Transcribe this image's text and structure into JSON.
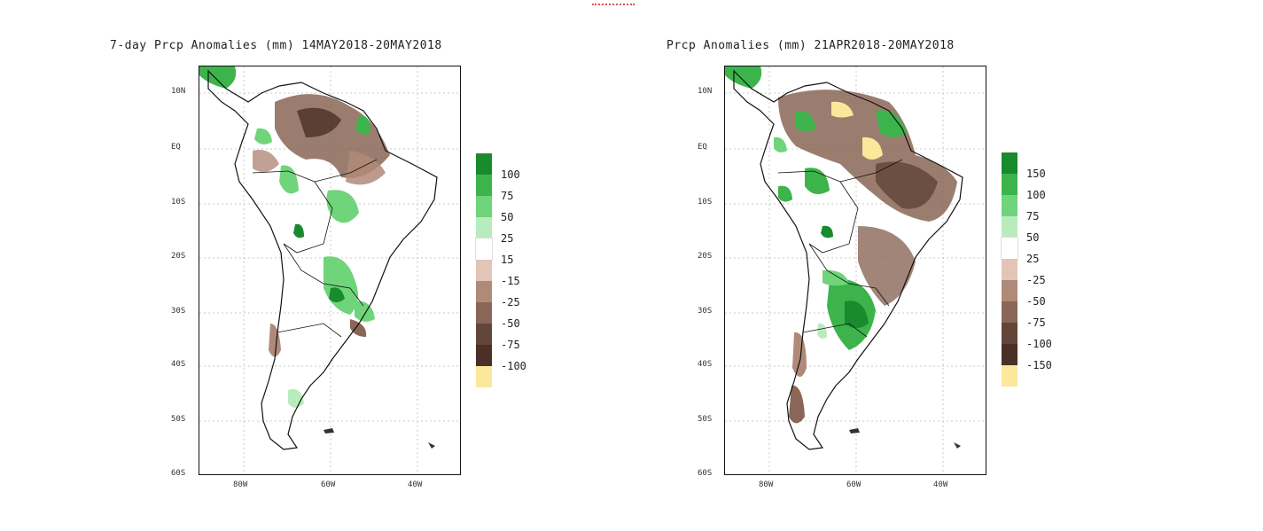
{
  "header_mark": "",
  "panels": [
    {
      "id": "left",
      "title": "7-day Prcp Anomalies (mm) 14MAY2018-20MAY2018",
      "lat_labels": [
        "10N",
        "EQ",
        "10S",
        "20S",
        "30S",
        "40S",
        "50S",
        "60S"
      ],
      "lon_labels": [
        "80W",
        "60W",
        "40W"
      ],
      "legend": [
        {
          "value": "100",
          "color": "#1a8a2e"
        },
        {
          "value": "75",
          "color": "#3cb44b"
        },
        {
          "value": "50",
          "color": "#6fd47a"
        },
        {
          "value": "25",
          "color": "#b9ecbd"
        },
        {
          "value": "15",
          "color": "#ffffff"
        },
        {
          "value": "-15",
          "color": "#e2c5b6"
        },
        {
          "value": "-25",
          "color": "#b08a78"
        },
        {
          "value": "-50",
          "color": "#8a6656"
        },
        {
          "value": "-75",
          "color": "#63463a"
        },
        {
          "value": "-100",
          "color": "#4a3026"
        },
        {
          "value": "",
          "color": "#fbe89a"
        }
      ]
    },
    {
      "id": "right",
      "title": "Prcp Anomalies (mm) 21APR2018-20MAY2018",
      "lat_labels": [
        "10N",
        "EQ",
        "10S",
        "20S",
        "30S",
        "40S",
        "50S",
        "60S"
      ],
      "lon_labels": [
        "80W",
        "60W",
        "40W"
      ],
      "legend": [
        {
          "value": "150",
          "color": "#1a8a2e"
        },
        {
          "value": "100",
          "color": "#3cb44b"
        },
        {
          "value": "75",
          "color": "#6fd47a"
        },
        {
          "value": "50",
          "color": "#b9ecbd"
        },
        {
          "value": "25",
          "color": "#ffffff"
        },
        {
          "value": "-25",
          "color": "#e2c5b6"
        },
        {
          "value": "-50",
          "color": "#b08a78"
        },
        {
          "value": "-75",
          "color": "#8a6656"
        },
        {
          "value": "-100",
          "color": "#63463a"
        },
        {
          "value": "-150",
          "color": "#4a3026"
        },
        {
          "value": "",
          "color": "#fbe89a"
        }
      ]
    }
  ]
}
